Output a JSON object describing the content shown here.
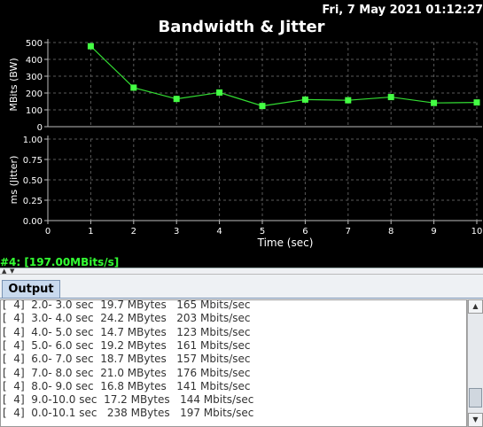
{
  "header": {
    "timestamp": "Fri, 7 May 2021 01:12:27",
    "title": "Bandwidth & Jitter"
  },
  "stream_label": "#4: [197.00MBits/s]",
  "chart_data": [
    {
      "type": "line",
      "ylabel": "MBits (BW)",
      "xlim": [
        0,
        10
      ],
      "ylim": [
        0,
        500
      ],
      "yticks": [
        "0",
        "100",
        "200",
        "300",
        "400",
        "500"
      ],
      "grid": true,
      "x": [
        1,
        2,
        3,
        4,
        5,
        6,
        7,
        8,
        9,
        10
      ],
      "series": [
        {
          "color": "#33dd33",
          "values": [
            478,
            232,
            165,
            203,
            123,
            161,
            157,
            176,
            141,
            144
          ]
        }
      ]
    },
    {
      "type": "line",
      "ylabel": "ms (Jitter)",
      "xlabel": "Time (sec)",
      "xlim": [
        0,
        10
      ],
      "ylim": [
        0,
        1
      ],
      "xticks": [
        "0",
        "1",
        "2",
        "3",
        "4",
        "5",
        "6",
        "7",
        "8",
        "9",
        "10"
      ],
      "yticks": [
        "0.00",
        "0.25",
        "0.50",
        "0.75",
        "1.00"
      ],
      "grid": true,
      "series": []
    }
  ],
  "tabs": [
    {
      "label": "Output"
    }
  ],
  "output": {
    "lines": [
      "[  4]  2.0- 3.0 sec  19.7 MBytes   165 Mbits/sec",
      "[  4]  3.0- 4.0 sec  24.2 MBytes   203 Mbits/sec",
      "[  4]  4.0- 5.0 sec  14.7 MBytes   123 Mbits/sec",
      "[  4]  5.0- 6.0 sec  19.2 MBytes   161 Mbits/sec",
      "[  4]  6.0- 7.0 sec  18.7 MBytes   157 Mbits/sec",
      "[  4]  7.0- 8.0 sec  21.0 MBytes   176 Mbits/sec",
      "[  4]  8.0- 9.0 sec  16.8 MBytes   141 Mbits/sec",
      "[  4]  9.0-10.0 sec  17.2 MBytes   144 Mbits/sec",
      "[  4]  0.0-10.1 sec   238 MBytes   197 Mbits/sec"
    ]
  },
  "colors": {
    "series": "#33dd33",
    "marker": "#44ff44",
    "stream_label": "#33ff33",
    "grid": "#5a5a5a",
    "axis": "#bbbbbb"
  }
}
